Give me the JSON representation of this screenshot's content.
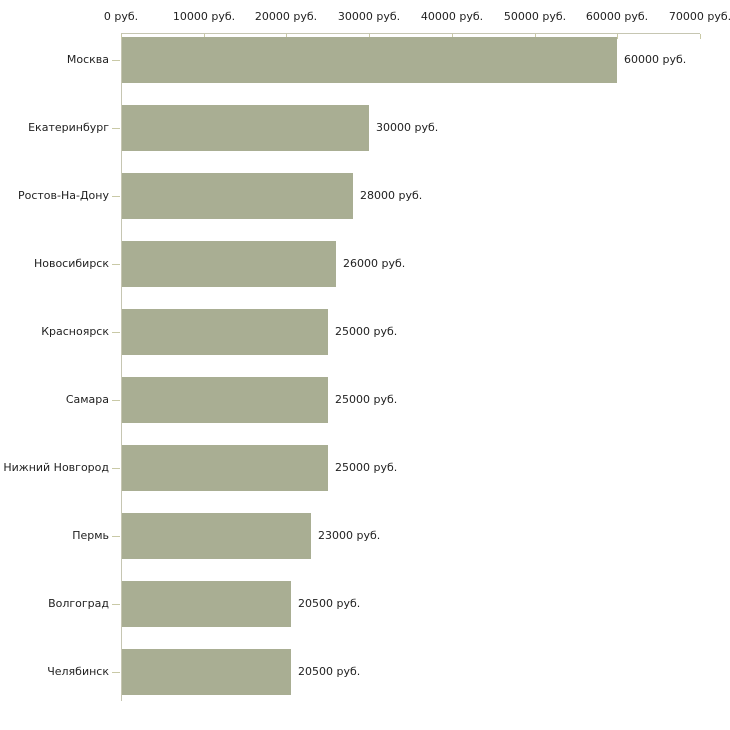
{
  "chart_data": {
    "type": "bar",
    "orientation": "horizontal",
    "title": "",
    "unit": "руб.",
    "categories": [
      "Москва",
      "Екатеринбург",
      "Ростов-На-Дону",
      "Новосибирск",
      "Красноярск",
      "Самара",
      "Нижний Новгород",
      "Пермь",
      "Волгоград",
      "Челябинск"
    ],
    "values": [
      60000,
      30000,
      28000,
      26000,
      25000,
      25000,
      25000,
      23000,
      20500,
      20500
    ],
    "value_labels": [
      "60000 руб.",
      "30000 руб.",
      "28000 руб.",
      "26000 руб.",
      "25000 руб.",
      "25000 руб.",
      "25000 руб.",
      "23000 руб.",
      "20500 руб.",
      "20500 руб."
    ],
    "x_axis": {
      "position": "top",
      "min": 0,
      "max": 70000,
      "tick_values": [
        0,
        10000,
        20000,
        30000,
        40000,
        50000,
        60000,
        70000
      ],
      "tick_labels": [
        "0 руб.",
        "10000 руб.",
        "20000 руб.",
        "30000 руб.",
        "40000 руб.",
        "50000 руб.",
        "60000 руб.",
        "70000 руб."
      ]
    },
    "grid": false,
    "legend": false,
    "colors": {
      "bar": "#a9ae93",
      "axis": "#c6c6b2",
      "tick": "#c9c9a6",
      "text": "#1f1f1f",
      "background": "#ffffff"
    }
  }
}
